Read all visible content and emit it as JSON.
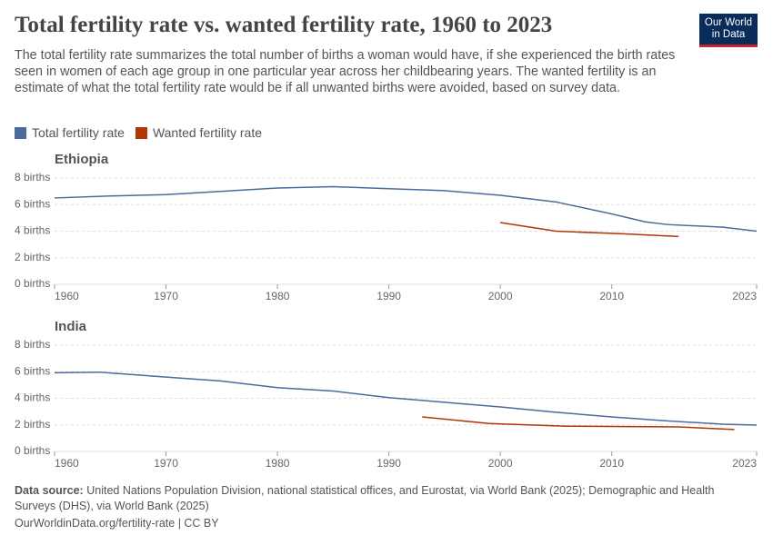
{
  "header": {
    "title": "Total fertility rate vs. wanted fertility rate, 1960 to 2023",
    "subtitle": "The total fertility rate summarizes the total number of births a woman would have, if she experienced the birth rates seen in women of each age group in one particular year across her childbearing years. The wanted fertility is an estimate of what the total fertility rate would be if all unwanted births were avoided, based on survey data.",
    "logo": "Our World in Data"
  },
  "footer": {
    "source_label": "Data source:",
    "source": "United Nations Population Division, national statistical offices, and Eurostat, via World Bank (2025); Demographic and Health Surveys (DHS), via World Bank (2025)",
    "url": "OurWorldinData.org/fertility-rate | CC BY"
  },
  "chart_data": [
    {
      "type": "line",
      "title": "Ethiopia",
      "xlim": [
        1960,
        2023
      ],
      "xticks": [
        1960,
        1970,
        1980,
        1990,
        2000,
        2010,
        2023
      ],
      "ylim": [
        0,
        8
      ],
      "yticks": [
        {
          "value": 0,
          "label": "0 births"
        },
        {
          "value": 2,
          "label": "2 births"
        },
        {
          "value": 4,
          "label": "4 births"
        },
        {
          "value": 6,
          "label": "6 births"
        },
        {
          "value": 8,
          "label": "8 births"
        }
      ],
      "grid": true,
      "series": [
        {
          "name": "Total fertility rate",
          "color": "#4c6a9c",
          "x": [
            1960,
            1965,
            1970,
            1975,
            1980,
            1985,
            1990,
            1995,
            2000,
            2005,
            2010,
            2013,
            2015,
            2020,
            2023
          ],
          "values": [
            6.5,
            6.65,
            6.75,
            7.0,
            7.25,
            7.35,
            7.2,
            7.05,
            6.7,
            6.2,
            5.3,
            4.7,
            4.5,
            4.3,
            4.0
          ]
        },
        {
          "name": "Wanted fertility rate",
          "color": "#b13507",
          "x": [
            2000,
            2005,
            2011,
            2016
          ],
          "values": [
            4.65,
            4.0,
            3.8,
            3.6
          ]
        }
      ]
    },
    {
      "type": "line",
      "title": "India",
      "xlim": [
        1960,
        2023
      ],
      "xticks": [
        1960,
        1970,
        1980,
        1990,
        2000,
        2010,
        2023
      ],
      "ylim": [
        0,
        8
      ],
      "yticks": [
        {
          "value": 0,
          "label": "0 births"
        },
        {
          "value": 2,
          "label": "2 births"
        },
        {
          "value": 4,
          "label": "4 births"
        },
        {
          "value": 6,
          "label": "6 births"
        },
        {
          "value": 8,
          "label": "8 births"
        }
      ],
      "grid": true,
      "series": [
        {
          "name": "Total fertility rate",
          "color": "#4c6a9c",
          "x": [
            1960,
            1964,
            1970,
            1975,
            1980,
            1985,
            1990,
            1995,
            2000,
            2005,
            2010,
            2015,
            2020,
            2023
          ],
          "values": [
            5.92,
            5.97,
            5.6,
            5.3,
            4.8,
            4.55,
            4.05,
            3.7,
            3.35,
            2.95,
            2.6,
            2.3,
            2.05,
            1.98
          ]
        },
        {
          "name": "Wanted fertility rate",
          "color": "#b13507",
          "x": [
            1993,
            1999,
            2006,
            2016,
            2021
          ],
          "values": [
            2.6,
            2.1,
            1.9,
            1.85,
            1.65
          ]
        }
      ]
    }
  ]
}
